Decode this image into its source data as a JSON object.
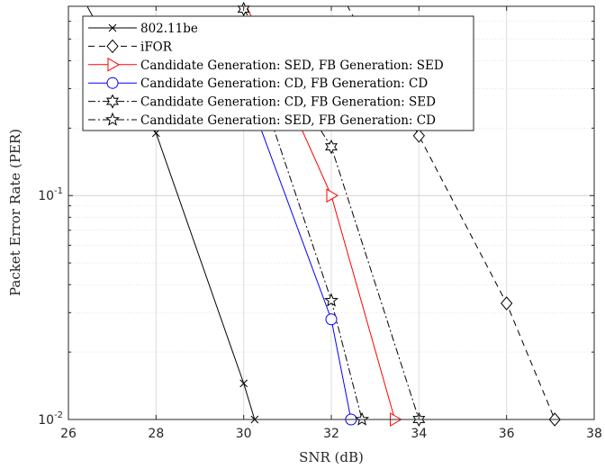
{
  "chart_data": {
    "type": "line",
    "xlabel": "SNR (dB)",
    "ylabel": "Packet Error Rate (PER)",
    "xlim": [
      26,
      38
    ],
    "ylim": [
      0.01,
      0.7
    ],
    "yscale": "log",
    "grid": true,
    "legend_position": "top-left",
    "x_ticks": [
      "26",
      "28",
      "30",
      "32",
      "34",
      "36",
      "38"
    ],
    "y_ticks": [
      {
        "value": 0.1,
        "base": "10",
        "exp": "-1"
      },
      {
        "value": 0.01,
        "base": "10",
        "exp": "-2"
      }
    ],
    "series": [
      {
        "name": "802.11be",
        "color": "#000000",
        "dash": "",
        "marker": "x",
        "x": [
          26,
          28,
          30,
          30.25
        ],
        "y": [
          1.0,
          0.19,
          0.0145,
          0.01
        ]
      },
      {
        "name": "iFOR",
        "color": "#000000",
        "dash": "7,5",
        "marker": "diamond",
        "x": [
          32,
          34,
          36,
          37.1
        ],
        "y": [
          0.95,
          0.185,
          0.033,
          0.01
        ]
      },
      {
        "name": "Candidate Generation: SED, FB Generation: SED",
        "color": "#ff0000",
        "dash": "",
        "marker": "triangle-right",
        "x": [
          30,
          32,
          33.45
        ],
        "y": [
          0.75,
          0.1,
          0.01
        ]
      },
      {
        "name": "Candidate Generation: CD, FB Generation: CD",
        "color": "#0000ff",
        "dash": "",
        "marker": "circle",
        "x": [
          30,
          32,
          32.45
        ],
        "y": [
          0.32,
          0.028,
          0.01
        ]
      },
      {
        "name": "Candidate Generation: CD, FB Generation: SED",
        "color": "#000000",
        "dash": "8,3,2,3",
        "marker": "hexagram",
        "x": [
          30,
          32,
          34
        ],
        "y": [
          0.68,
          0.165,
          0.01
        ]
      },
      {
        "name": "Candidate Generation: SED, FB Generation: CD",
        "color": "#000000",
        "dash": "8,3,2,3",
        "marker": "pentagram",
        "x": [
          30,
          32,
          32.7
        ],
        "y": [
          0.5,
          0.034,
          0.01
        ]
      }
    ]
  }
}
